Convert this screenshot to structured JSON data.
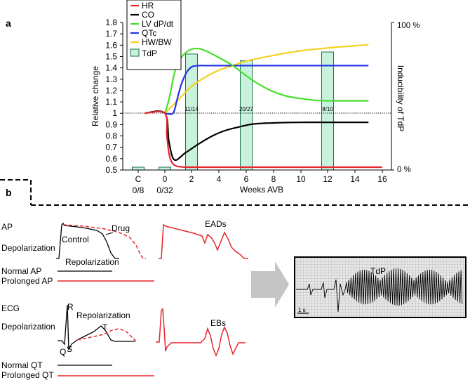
{
  "panels": {
    "a": {
      "label": "a",
      "y_axis_label": "Relative change",
      "y_ticks": [
        "1.8",
        "1.7",
        "1.6",
        "1.5",
        "1.4",
        "1.3",
        "1.2",
        "1.1",
        "1",
        "0.9",
        "0.8",
        "0.7",
        "0.6",
        "0.5"
      ],
      "x_axis_label": "Weeks AVB",
      "x_ticks": [
        "C",
        "0",
        "2",
        "4",
        "6",
        "8",
        "10",
        "12",
        "14",
        "16"
      ],
      "x_subticks": [
        "0/8",
        "0/32"
      ],
      "right_axis_label": "Inducibility of TdP",
      "right_ticks": [
        "100 %",
        "0 %"
      ],
      "bar_labels": [
        "11/14",
        "20/27",
        "8/10"
      ],
      "legend": [
        {
          "label": "HR",
          "color": "#e8262c"
        },
        {
          "label": "CO",
          "color": "#000000"
        },
        {
          "label": "LV dP/dt",
          "color": "#45e02a"
        },
        {
          "label": "QTc",
          "color": "#2433e6"
        },
        {
          "label": "HW/BW",
          "color": "#f5d027"
        },
        {
          "label": "TdP",
          "color": "#c9f2dd"
        }
      ]
    },
    "b": {
      "label": "b",
      "ap": {
        "label": "AP",
        "drug": "Drug",
        "control": "Control",
        "depolarization": "Depolarization",
        "repolarization": "Repolarization",
        "eads": "EADs",
        "normal": "Normal AP",
        "prolonged": "Prolonged AP"
      },
      "ecg": {
        "label": "ECG",
        "r": "R",
        "q": "Q",
        "s": "S",
        "t": "T",
        "depolarization": "Depolarization",
        "repolarization": "Repolarization",
        "ebs": "EBs",
        "normal": "Normal QT",
        "prolonged": "Prolonged QT"
      },
      "tdp_trace": {
        "label": "TdP",
        "scale": "1 s"
      }
    }
  },
  "chart_data": {
    "type": "line",
    "title": "",
    "xlabel": "Weeks AVB",
    "ylabel": "Relative change",
    "ylabel_right": "Inducibility of TdP",
    "xlim": [
      -3,
      16
    ],
    "ylim": [
      0.5,
      1.8
    ],
    "x_categories": [
      "C",
      "0",
      "2",
      "4",
      "6",
      "8",
      "10",
      "12",
      "14",
      "16"
    ],
    "x_subcategory_labels": {
      "C": "0/8",
      "0": "0/32"
    },
    "series": [
      {
        "name": "HR",
        "color": "#e8262c",
        "x": [
          -1.5,
          0,
          0.15,
          0.3,
          0.5,
          0.75,
          1,
          1.5,
          2,
          4,
          8,
          16
        ],
        "y": [
          1,
          1,
          0.8,
          0.65,
          0.57,
          0.54,
          0.53,
          0.525,
          0.525,
          0.525,
          0.525,
          0.525
        ]
      },
      {
        "name": "CO",
        "color": "#000000",
        "x": [
          -1.5,
          0,
          0.3,
          0.7,
          1.5,
          2.5,
          3.5,
          4.5,
          5.5,
          6.5,
          8,
          10,
          12,
          15
        ],
        "y": [
          1,
          1,
          0.75,
          0.59,
          0.65,
          0.73,
          0.8,
          0.85,
          0.88,
          0.905,
          0.915,
          0.92,
          0.92,
          0.92
        ]
      },
      {
        "name": "LV dP/dt",
        "color": "#45e02a",
        "x": [
          0,
          0.3,
          0.7,
          1,
          1.5,
          2,
          2.5,
          3,
          4,
          5,
          6,
          7,
          8,
          9,
          10,
          11,
          12,
          13,
          14,
          15
        ],
        "y": [
          1,
          1.12,
          1.35,
          1.45,
          1.53,
          1.565,
          1.57,
          1.55,
          1.49,
          1.42,
          1.33,
          1.25,
          1.19,
          1.15,
          1.13,
          1.115,
          1.11,
          1.11,
          1.11,
          1.11
        ]
      },
      {
        "name": "QTc",
        "color": "#2433e6",
        "x": [
          0,
          0.6,
          0.9,
          1.2,
          1.6,
          2,
          2.5,
          3,
          4,
          6,
          8,
          12,
          15
        ],
        "y": [
          1,
          1,
          1.12,
          1.25,
          1.36,
          1.41,
          1.42,
          1.42,
          1.42,
          1.42,
          1.42,
          1.42,
          1.42
        ]
      },
      {
        "name": "HW/BW",
        "color": "#f5d027",
        "x": [
          0,
          1,
          2,
          3,
          4,
          5,
          6,
          8,
          10,
          12,
          14,
          15
        ],
        "y": [
          1,
          1.12,
          1.24,
          1.32,
          1.38,
          1.42,
          1.46,
          1.51,
          1.55,
          1.575,
          1.595,
          1.605
        ]
      }
    ],
    "reference_line": {
      "y": 1,
      "style": "dotted"
    },
    "bars": {
      "name": "TdP",
      "axis": "right",
      "ylim": [
        0,
        100
      ],
      "unit": "%",
      "color": "#c9f2dd",
      "items": [
        {
          "x": "C",
          "value": 0,
          "label": "0/8"
        },
        {
          "x": "0",
          "value": 0,
          "label": "0/32"
        },
        {
          "x": "2",
          "value": 78.6,
          "label": "11/14"
        },
        {
          "x": "6",
          "value": 74.1,
          "label": "20/27"
        },
        {
          "x": "12",
          "value": 80,
          "label": "8/10"
        }
      ]
    }
  }
}
